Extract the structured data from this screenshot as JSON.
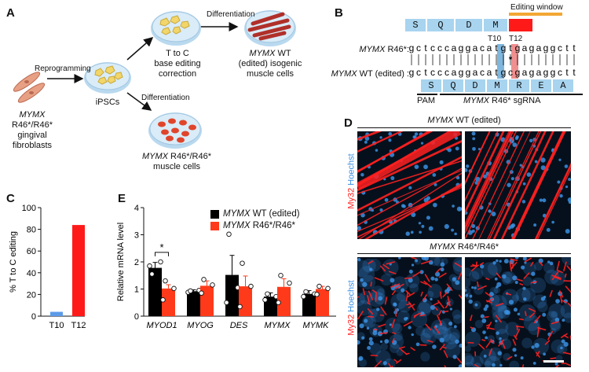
{
  "panel_a": {
    "letter": "A",
    "reprogramming": "Reprogramming",
    "differentiation_top": "Differentiation",
    "differentiation_bottom": "Differentiation",
    "base_edit": [
      "T to C",
      "base editing",
      "correction"
    ],
    "ipscs": "iPSCs",
    "fibro_gene": "MYMX",
    "fibro_lines": [
      "R46*/R46*",
      "gingival",
      "fibroblasts"
    ],
    "wt_gene": "MYMX",
    "wt_suffix": " WT",
    "wt_lines": [
      "(edited) isogenic",
      "muscle cells"
    ],
    "mut_gene": "MYMX",
    "mut_suffix": " R46*/R46*",
    "mut_line2": "muscle cells",
    "colors": {
      "dish": "#cfe6f5",
      "fibroblast": "#e8a084",
      "ipsc": "#f2d66a",
      "muscle": "#b0302a",
      "round_cell": "#e0452b"
    }
  },
  "panel_b": {
    "letter": "B",
    "editing_window": "Editing window",
    "top_aa": [
      "S",
      "Q",
      "D",
      "M"
    ],
    "t10": "T10",
    "t12": "T12",
    "r46_gene": "MYMX",
    "r46_suffix": " R46*:",
    "r46_seq": [
      "g",
      "c",
      "t",
      "c",
      "c",
      "c",
      "a",
      "g",
      "g",
      "a",
      "c",
      "a",
      "t",
      "g",
      "t",
      "g",
      "a",
      "g",
      "a",
      "g",
      "g",
      "c",
      "t",
      "t"
    ],
    "star": "*",
    "wt_gene": "MYMX",
    "wt_suffix": " WT (edited) :",
    "wt_seq": [
      "g",
      "c",
      "t",
      "c",
      "c",
      "c",
      "a",
      "g",
      "g",
      "a",
      "c",
      "a",
      "t",
      "g",
      "c",
      "g",
      "a",
      "g",
      "a",
      "g",
      "g",
      "c",
      "t",
      "t"
    ],
    "bottom_aa": [
      "S",
      "Q",
      "D",
      "M",
      "R",
      "E",
      "A"
    ],
    "pam": "PAM",
    "sgrna_gene": "MYMX",
    "sgrna_suffix": " R46* sgRNA",
    "colors": {
      "aa_box": "#a8d4ef",
      "stop_box": "#ff1a1a",
      "window": "#f3a733",
      "t10_col": "#7fb6dd",
      "t12_col": "#f08f8f"
    }
  },
  "panel_c": {
    "letter": "C",
    "chart_data": {
      "type": "bar",
      "categories": [
        "T10",
        "T12"
      ],
      "values": [
        4,
        84
      ],
      "colors": [
        "#5b9be8",
        "#ff1a1a"
      ],
      "ylabel": "% T to C editing",
      "ylim": [
        0,
        100
      ],
      "yticks": [
        0,
        20,
        40,
        60,
        80,
        100
      ]
    }
  },
  "panel_e": {
    "letter": "E",
    "chart_data": {
      "type": "bar",
      "categories": [
        "MYOD1",
        "MYOG",
        "DES",
        "MYMX",
        "MYMK"
      ],
      "ylabel": "Relative mRNA level",
      "ylim": [
        0,
        4
      ],
      "yticks": [
        0,
        1,
        2,
        3,
        4
      ],
      "series": [
        {
          "name": "MYMX WT (edited)",
          "color": "#000000",
          "values": [
            1.78,
            0.92,
            1.52,
            0.72,
            0.82
          ],
          "errors": [
            0.2,
            0.05,
            0.72,
            0.14,
            0.12
          ],
          "points": [
            [
              1.85,
              2.0,
              1.55
            ],
            [
              0.88,
              0.95,
              0.93
            ],
            [
              0.5,
              1.05,
              3.02
            ],
            [
              0.6,
              0.72,
              0.82
            ],
            [
              0.72,
              0.82,
              0.9
            ]
          ]
        },
        {
          "name": "MYMX R46*/R46*",
          "color": "#ff3a1a",
          "values": [
            1.02,
            1.12,
            1.1,
            1.08,
            1.0
          ],
          "errors": [
            0.14,
            0.18,
            0.38,
            0.3,
            0.1
          ],
          "points": [
            [
              0.6,
              1.02,
              1.3
            ],
            [
              0.85,
              1.15,
              1.35
            ],
            [
              0.35,
              1.1,
              1.95
            ],
            [
              0.5,
              1.22,
              1.5
            ],
            [
              0.8,
              1.02,
              1.1
            ]
          ]
        }
      ],
      "legend_genes": [
        "MYMX",
        "MYMX"
      ],
      "legend_suffixes": [
        " WT (edited)",
        " R46*/R46*"
      ],
      "significance": "*"
    }
  },
  "panel_d": {
    "letter": "D",
    "top_gene": "MYMX",
    "top_suffix": " WT (edited)",
    "bottom_gene": "MYMX",
    "bottom_suffix": " R46*/R46*",
    "stain_red": "My32",
    "stain_blue": "Hoechst",
    "colors": {
      "stain_red": "#ff2020",
      "stain_blue": "#3b8fe0",
      "background": "#06101c"
    }
  }
}
